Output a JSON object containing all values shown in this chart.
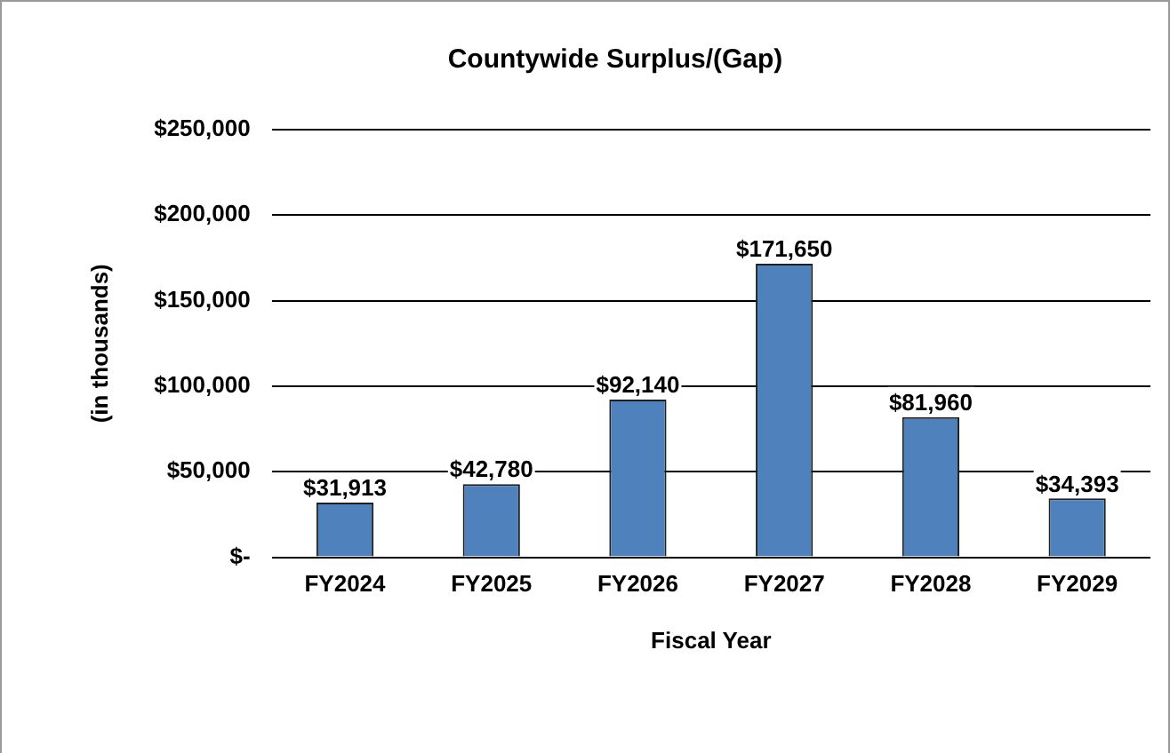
{
  "chart_data": {
    "type": "bar",
    "title": "Countywide Surplus/(Gap)",
    "xlabel": "Fiscal Year",
    "ylabel": "(in thousands)",
    "categories": [
      "FY2024",
      "FY2025",
      "FY2026",
      "FY2027",
      "FY2028",
      "FY2029"
    ],
    "values": [
      31913,
      42780,
      92140,
      171650,
      81960,
      34393
    ],
    "value_labels": [
      "$31,913",
      "$42,780",
      "$92,140",
      "$171,650",
      "$81,960",
      "$34,393"
    ],
    "color": "#4f81bd",
    "ylim": [
      0,
      250000
    ],
    "yticks": [
      {
        "value": 0,
        "label": "$-"
      },
      {
        "value": 50000,
        "label": "$50,000"
      },
      {
        "value": 100000,
        "label": "$100,000"
      },
      {
        "value": 150000,
        "label": "$150,000"
      },
      {
        "value": 200000,
        "label": "$200,000"
      },
      {
        "value": 250000,
        "label": "$250,000"
      }
    ],
    "grid": "y",
    "legend": false
  }
}
